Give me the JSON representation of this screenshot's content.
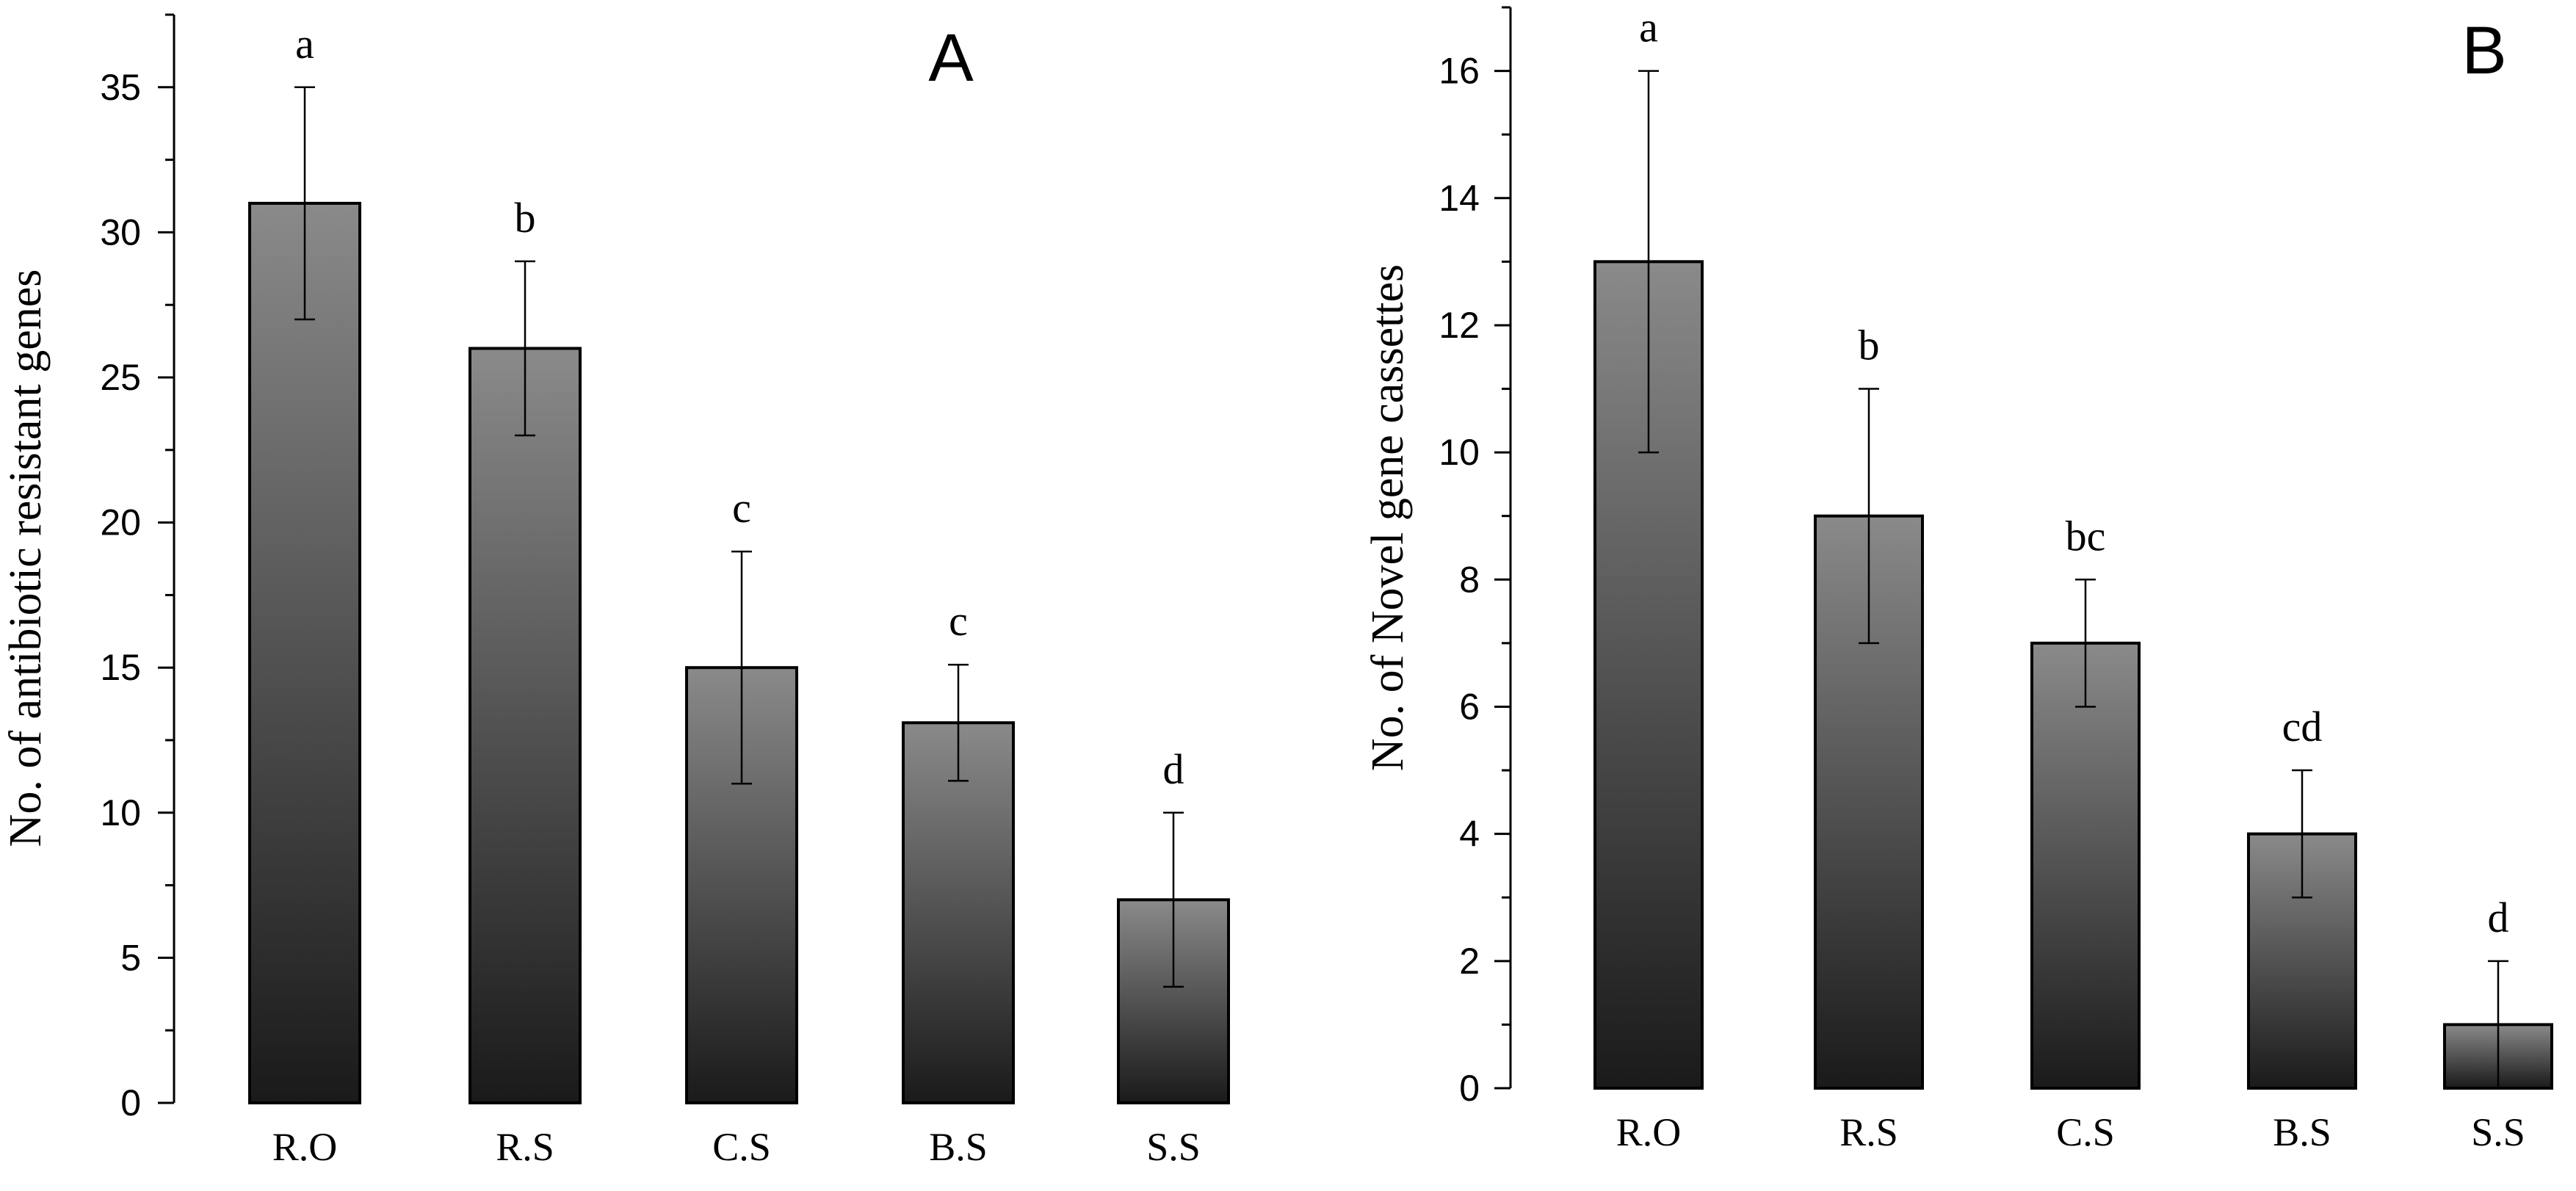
{
  "chart_data": [
    {
      "panel": "A",
      "type": "bar",
      "title": "",
      "panel_label": "A",
      "xlabel": "",
      "ylabel": "No. of antibiotic resistant genes",
      "categories": [
        "R.O",
        "R.S",
        "C.S",
        "B.S",
        "S.S"
      ],
      "values": [
        31,
        26,
        15,
        13.1,
        7
      ],
      "error_low": [
        27,
        23,
        11,
        11.1,
        4
      ],
      "error_high": [
        35,
        29,
        19,
        15.1,
        10
      ],
      "significance_letters": [
        "a",
        "b",
        "c",
        "c",
        "d"
      ],
      "ylim": [
        0,
        37.5
      ],
      "yticks": [
        0,
        5,
        10,
        15,
        20,
        25,
        30,
        35
      ],
      "ytick_labels": [
        "0",
        "5",
        "10",
        "15",
        "20",
        "25",
        "30",
        "35"
      ],
      "grid": false
    },
    {
      "panel": "B",
      "type": "bar",
      "title": "",
      "panel_label": "B",
      "xlabel": "",
      "ylabel": "No. of Novel gene cassettes",
      "categories": [
        "R.O",
        "R.S",
        "C.S",
        "B.S",
        "S.S"
      ],
      "values": [
        13,
        9,
        7,
        4,
        1
      ],
      "error_low": [
        10,
        7,
        6,
        3,
        0
      ],
      "error_high": [
        16,
        11,
        8,
        5,
        2
      ],
      "significance_letters": [
        "a",
        "b",
        "bc",
        "cd",
        "d"
      ],
      "ylim": [
        0,
        17
      ],
      "yticks": [
        0,
        2,
        4,
        6,
        8,
        10,
        12,
        14,
        16
      ],
      "ytick_labels": [
        "0",
        "2",
        "4",
        "6",
        "8",
        "10",
        "12",
        "14",
        "16"
      ],
      "grid": false
    }
  ],
  "colors": {
    "bar_top": "#8a8a8a",
    "bar_bottom": "#1a1a1a",
    "axis": "#000000",
    "background": "#ffffff"
  }
}
